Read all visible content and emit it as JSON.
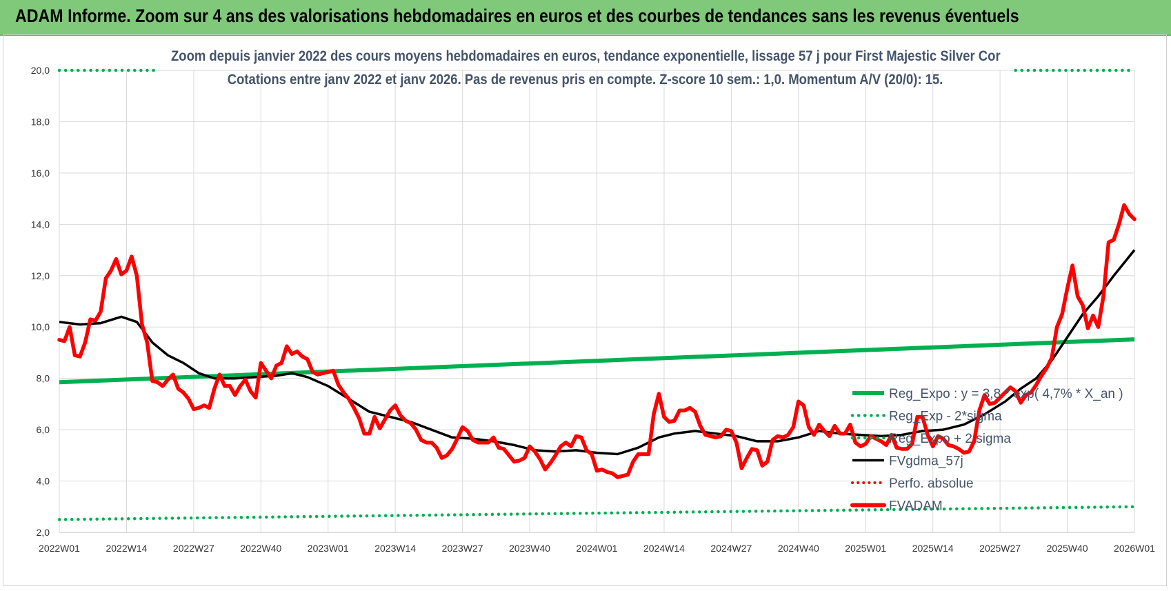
{
  "header": {
    "title": "ADAM Informe. Zoom sur 4 ans des valorisations hebdomadaires en euros et des courbes de tendances sans les revenus éventuels"
  },
  "colors": {
    "banner": "#80c97a",
    "reg": "#00b050",
    "fv": "#000000",
    "price": "#ff0000",
    "perfo": "#ff0000",
    "subtitle": "#44546a",
    "grid": "#d9d9d9"
  },
  "chart_data": {
    "type": "line",
    "title": "Zoom depuis janvier 2022 des cours moyens hebdomadaires en euros, tendance exponentielle, lissage 57 j pour First Majestic Silver Cor",
    "subtitle": "Cotations entre janv 2022 et janv 2026. Pas de revenus pris en compte. Z-score 10 sem.: 1,0. Momentum A/V (20/0): 15.",
    "xlabel": "",
    "ylabel": "",
    "ylim": [
      2,
      20
    ],
    "yticks": [
      "2,0",
      "4,0",
      "6,0",
      "8,0",
      "10,0",
      "12,0",
      "14,0",
      "16,0",
      "18,0",
      "20,0"
    ],
    "grid": true,
    "xticks": [
      {
        "label": "2022W01",
        "week": 0
      },
      {
        "label": "2022W14",
        "week": 13
      },
      {
        "label": "2022W27",
        "week": 26
      },
      {
        "label": "2022W40",
        "week": 39
      },
      {
        "label": "2023W01",
        "week": 52
      },
      {
        "label": "2023W14",
        "week": 65
      },
      {
        "label": "2023W27",
        "week": 78
      },
      {
        "label": "2023W40",
        "week": 91
      },
      {
        "label": "2024W01",
        "week": 104
      },
      {
        "label": "2024W14",
        "week": 117
      },
      {
        "label": "2024W27",
        "week": 130
      },
      {
        "label": "2024W40",
        "week": 143
      },
      {
        "label": "2025W01",
        "week": 156
      },
      {
        "label": "2025W14",
        "week": 169
      },
      {
        "label": "2025W27",
        "week": 182
      },
      {
        "label": "2025W40",
        "week": 195
      },
      {
        "label": "2026W01",
        "week": 208
      }
    ],
    "legend_position": "right",
    "series": [
      {
        "name": "Reg_Expo : y = 3,8 * exp( 4,7% * X_an )",
        "style": "solid-green",
        "points": [
          [
            0,
            7.85
          ],
          [
            208,
            9.52
          ]
        ]
      },
      {
        "name": "Reg_Exp - 2*sigma",
        "style": "dotted-green",
        "points": [
          [
            0,
            2.5
          ],
          [
            208,
            3.0
          ]
        ]
      },
      {
        "name": "Reg_Expo + 2 sigma",
        "style": "dotted-green",
        "points": [
          [
            0,
            20.0
          ],
          [
            19,
            20.0
          ],
          [
            185,
            20.0
          ],
          [
            208,
            20.0
          ]
        ],
        "segments": [
          [
            0,
            18.5
          ],
          [
            185,
            208
          ]
        ]
      },
      {
        "name": "FVgdma_57j",
        "style": "solid-black",
        "points": [
          [
            0,
            10.2
          ],
          [
            4,
            10.1
          ],
          [
            8,
            10.15
          ],
          [
            12,
            10.4
          ],
          [
            15,
            10.2
          ],
          [
            18,
            9.4
          ],
          [
            21,
            8.9
          ],
          [
            24,
            8.6
          ],
          [
            27,
            8.2
          ],
          [
            30,
            8.0
          ],
          [
            34,
            8.0
          ],
          [
            38,
            8.05
          ],
          [
            42,
            8.1
          ],
          [
            45,
            8.2
          ],
          [
            48,
            8.05
          ],
          [
            52,
            7.7
          ],
          [
            56,
            7.2
          ],
          [
            60,
            6.7
          ],
          [
            64,
            6.5
          ],
          [
            68,
            6.3
          ],
          [
            72,
            6.0
          ],
          [
            76,
            5.7
          ],
          [
            80,
            5.65
          ],
          [
            84,
            5.55
          ],
          [
            88,
            5.4
          ],
          [
            92,
            5.2
          ],
          [
            96,
            5.15
          ],
          [
            100,
            5.2
          ],
          [
            104,
            5.1
          ],
          [
            108,
            5.05
          ],
          [
            112,
            5.3
          ],
          [
            116,
            5.7
          ],
          [
            119,
            5.85
          ],
          [
            123,
            5.95
          ],
          [
            127,
            5.85
          ],
          [
            131,
            5.75
          ],
          [
            135,
            5.55
          ],
          [
            139,
            5.55
          ],
          [
            143,
            5.7
          ],
          [
            147,
            5.95
          ],
          [
            151,
            5.85
          ],
          [
            155,
            5.8
          ],
          [
            159,
            5.75
          ],
          [
            163,
            5.8
          ],
          [
            167,
            5.95
          ],
          [
            171,
            6.0
          ],
          [
            175,
            6.2
          ],
          [
            179,
            6.6
          ],
          [
            183,
            7.1
          ],
          [
            186,
            7.6
          ],
          [
            189,
            8.0
          ],
          [
            192,
            8.7
          ],
          [
            195,
            9.6
          ],
          [
            198,
            10.5
          ],
          [
            201,
            11.2
          ],
          [
            204,
            12.0
          ],
          [
            208,
            13.0
          ]
        ]
      },
      {
        "name": "Perfo. absolue",
        "style": "dotted-red",
        "points": []
      },
      {
        "name": "FVADAM",
        "style": "solid-red",
        "points": [
          [
            0,
            9.5
          ],
          [
            1,
            9.45
          ],
          [
            2,
            10.0
          ],
          [
            3,
            8.9
          ],
          [
            4,
            8.85
          ],
          [
            5,
            9.4
          ],
          [
            6,
            10.3
          ],
          [
            7,
            10.25
          ],
          [
            8,
            10.6
          ],
          [
            9,
            11.9
          ],
          [
            10,
            12.2
          ],
          [
            11,
            12.65
          ],
          [
            12,
            12.05
          ],
          [
            13,
            12.2
          ],
          [
            14,
            12.75
          ],
          [
            15,
            12.0
          ],
          [
            16,
            10.1
          ],
          [
            17,
            9.4
          ],
          [
            18,
            7.9
          ],
          [
            19,
            7.85
          ],
          [
            20,
            7.7
          ],
          [
            21,
            7.95
          ],
          [
            22,
            8.15
          ],
          [
            23,
            7.6
          ],
          [
            24,
            7.45
          ],
          [
            25,
            7.2
          ],
          [
            26,
            6.8
          ],
          [
            27,
            6.85
          ],
          [
            28,
            6.95
          ],
          [
            29,
            6.85
          ],
          [
            30,
            7.6
          ],
          [
            31,
            8.15
          ],
          [
            32,
            7.7
          ],
          [
            33,
            7.7
          ],
          [
            34,
            7.35
          ],
          [
            35,
            7.7
          ],
          [
            36,
            7.95
          ],
          [
            37,
            7.5
          ],
          [
            38,
            7.25
          ],
          [
            39,
            8.6
          ],
          [
            40,
            8.3
          ],
          [
            41,
            8.0
          ],
          [
            42,
            8.5
          ],
          [
            43,
            8.6
          ],
          [
            44,
            9.25
          ],
          [
            45,
            8.95
          ],
          [
            46,
            9.05
          ],
          [
            47,
            8.85
          ],
          [
            48,
            8.75
          ],
          [
            49,
            8.25
          ],
          [
            50,
            8.15
          ],
          [
            51,
            8.2
          ],
          [
            52,
            8.25
          ],
          [
            53,
            8.3
          ],
          [
            54,
            7.75
          ],
          [
            55,
            7.45
          ],
          [
            56,
            7.2
          ],
          [
            57,
            6.85
          ],
          [
            58,
            6.45
          ],
          [
            59,
            5.85
          ],
          [
            60,
            5.85
          ],
          [
            61,
            6.5
          ],
          [
            62,
            6.05
          ],
          [
            63,
            6.4
          ],
          [
            64,
            6.75
          ],
          [
            65,
            6.95
          ],
          [
            66,
            6.55
          ],
          [
            67,
            6.35
          ],
          [
            68,
            6.25
          ],
          [
            69,
            6.0
          ],
          [
            70,
            5.6
          ],
          [
            71,
            5.5
          ],
          [
            72,
            5.5
          ],
          [
            73,
            5.3
          ],
          [
            74,
            4.9
          ],
          [
            75,
            5.0
          ],
          [
            76,
            5.25
          ],
          [
            77,
            5.65
          ],
          [
            78,
            6.1
          ],
          [
            79,
            5.95
          ],
          [
            80,
            5.6
          ],
          [
            81,
            5.5
          ],
          [
            82,
            5.5
          ],
          [
            83,
            5.5
          ],
          [
            84,
            5.7
          ],
          [
            85,
            5.3
          ],
          [
            86,
            5.25
          ],
          [
            87,
            5.0
          ],
          [
            88,
            4.75
          ],
          [
            89,
            4.8
          ],
          [
            90,
            4.9
          ],
          [
            91,
            5.35
          ],
          [
            92,
            5.15
          ],
          [
            93,
            4.85
          ],
          [
            94,
            4.45
          ],
          [
            95,
            4.7
          ],
          [
            96,
            5.0
          ],
          [
            97,
            5.35
          ],
          [
            98,
            5.5
          ],
          [
            99,
            5.35
          ],
          [
            100,
            5.75
          ],
          [
            101,
            5.7
          ],
          [
            102,
            5.2
          ],
          [
            103,
            5.05
          ],
          [
            104,
            4.4
          ],
          [
            105,
            4.45
          ],
          [
            106,
            4.35
          ],
          [
            107,
            4.3
          ],
          [
            108,
            4.15
          ],
          [
            109,
            4.2
          ],
          [
            110,
            4.25
          ],
          [
            111,
            4.75
          ],
          [
            112,
            5.05
          ],
          [
            113,
            5.05
          ],
          [
            114,
            5.05
          ],
          [
            115,
            6.6
          ],
          [
            116,
            7.4
          ],
          [
            117,
            6.5
          ],
          [
            118,
            6.3
          ],
          [
            119,
            6.35
          ],
          [
            120,
            6.75
          ],
          [
            121,
            6.75
          ],
          [
            122,
            6.85
          ],
          [
            123,
            6.7
          ],
          [
            124,
            6.15
          ],
          [
            125,
            5.8
          ],
          [
            126,
            5.75
          ],
          [
            127,
            5.7
          ],
          [
            128,
            5.75
          ],
          [
            129,
            6.0
          ],
          [
            130,
            5.95
          ],
          [
            131,
            5.5
          ],
          [
            132,
            4.5
          ],
          [
            133,
            4.9
          ],
          [
            134,
            5.25
          ],
          [
            135,
            5.2
          ],
          [
            136,
            4.6
          ],
          [
            137,
            4.75
          ],
          [
            138,
            5.6
          ],
          [
            139,
            5.75
          ],
          [
            140,
            5.7
          ],
          [
            141,
            5.8
          ],
          [
            142,
            6.1
          ],
          [
            143,
            7.1
          ],
          [
            144,
            6.95
          ],
          [
            145,
            6.1
          ],
          [
            146,
            5.8
          ],
          [
            147,
            6.2
          ],
          [
            148,
            5.95
          ],
          [
            149,
            5.75
          ],
          [
            150,
            6.15
          ],
          [
            151,
            5.85
          ],
          [
            152,
            5.85
          ],
          [
            153,
            6.2
          ],
          [
            154,
            5.5
          ],
          [
            155,
            5.35
          ],
          [
            156,
            5.45
          ],
          [
            157,
            5.75
          ],
          [
            158,
            5.65
          ],
          [
            159,
            5.55
          ],
          [
            160,
            5.4
          ],
          [
            161,
            5.8
          ],
          [
            162,
            5.3
          ],
          [
            163,
            5.25
          ],
          [
            164,
            5.25
          ],
          [
            165,
            5.45
          ],
          [
            166,
            6.5
          ],
          [
            167,
            6.5
          ],
          [
            168,
            5.8
          ],
          [
            169,
            5.35
          ],
          [
            170,
            5.75
          ],
          [
            171,
            5.65
          ],
          [
            172,
            5.4
          ],
          [
            173,
            5.35
          ],
          [
            174,
            5.25
          ],
          [
            175,
            5.1
          ],
          [
            176,
            5.15
          ],
          [
            177,
            5.55
          ],
          [
            178,
            6.75
          ],
          [
            179,
            7.35
          ],
          [
            180,
            7.0
          ],
          [
            181,
            7.05
          ],
          [
            182,
            7.25
          ],
          [
            183,
            7.45
          ],
          [
            184,
            7.65
          ],
          [
            185,
            7.5
          ],
          [
            186,
            7.05
          ],
          [
            187,
            7.35
          ],
          [
            188,
            7.45
          ],
          [
            189,
            7.75
          ],
          [
            190,
            8.1
          ],
          [
            191,
            8.4
          ],
          [
            192,
            8.8
          ],
          [
            193,
            10.0
          ],
          [
            194,
            10.5
          ],
          [
            195,
            11.5
          ],
          [
            196,
            12.4
          ],
          [
            197,
            11.2
          ],
          [
            198,
            10.85
          ],
          [
            199,
            9.95
          ],
          [
            200,
            10.45
          ],
          [
            201,
            10.0
          ],
          [
            202,
            11.2
          ],
          [
            203,
            13.3
          ],
          [
            204,
            13.4
          ],
          [
            205,
            14.0
          ],
          [
            206,
            14.75
          ],
          [
            207,
            14.4
          ],
          [
            208,
            14.2
          ]
        ]
      }
    ]
  }
}
